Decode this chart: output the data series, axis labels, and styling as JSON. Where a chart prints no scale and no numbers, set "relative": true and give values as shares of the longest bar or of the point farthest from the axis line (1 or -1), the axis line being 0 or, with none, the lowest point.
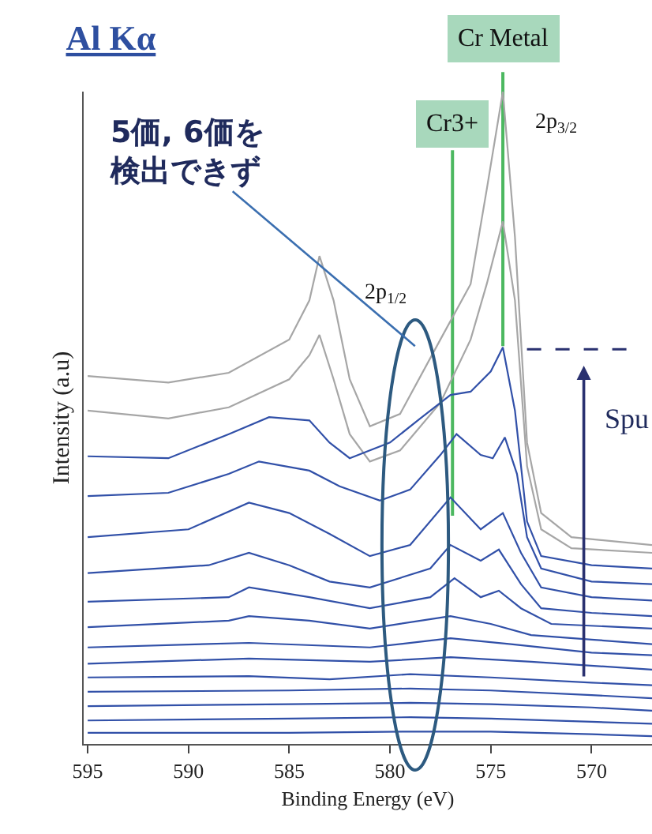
{
  "chart_data": {
    "type": "line",
    "title": "Al Kα",
    "xlabel": "Binding Energy (eV)",
    "ylabel": "Intensity (a.u)",
    "relative": true,
    "xlim": [
      595.2,
      567
    ],
    "xticks": [
      595,
      590,
      585,
      580,
      575,
      570
    ],
    "legend": false,
    "marker": "none",
    "line_style": "solid",
    "series": [
      {
        "color": "#a6a6a6",
        "x": [
          595,
          591,
          588,
          585,
          584,
          583.5,
          582.8,
          582,
          581,
          579.5,
          577.5,
          576,
          575.2,
          574.4,
          573.8,
          573.2,
          572.5,
          571,
          567
        ],
        "values": [
          0.564,
          0.554,
          0.569,
          0.62,
          0.68,
          0.748,
          0.68,
          0.559,
          0.487,
          0.506,
          0.62,
          0.705,
          0.85,
          1.0,
          0.777,
          0.462,
          0.354,
          0.317,
          0.305
        ]
      },
      {
        "color": "#a6a6a6",
        "x": [
          595,
          591,
          588,
          585,
          584,
          583.5,
          582.8,
          582,
          581,
          579.5,
          577.5,
          576,
          575.2,
          574.4,
          573.8,
          573.2,
          572.5,
          571,
          567
        ],
        "values": [
          0.511,
          0.499,
          0.516,
          0.559,
          0.596,
          0.627,
          0.559,
          0.475,
          0.433,
          0.45,
          0.523,
          0.62,
          0.705,
          0.801,
          0.68,
          0.426,
          0.329,
          0.3,
          0.293
        ]
      },
      {
        "color": "#3150a8",
        "x": [
          595,
          591,
          588,
          586,
          584,
          583,
          582,
          581,
          580,
          578.5,
          577,
          576,
          575,
          574.4,
          573.8,
          573.2,
          572.5,
          570,
          567
        ],
        "values": [
          0.441,
          0.438,
          0.475,
          0.501,
          0.496,
          0.462,
          0.438,
          0.45,
          0.462,
          0.499,
          0.535,
          0.54,
          0.571,
          0.608,
          0.511,
          0.341,
          0.288,
          0.274,
          0.269
        ]
      },
      {
        "color": "#3150a8",
        "x": [
          595,
          591,
          588,
          586.5,
          584,
          582.5,
          580.5,
          579,
          577.5,
          576.7,
          575.5,
          574.9,
          574.3,
          573.7,
          573.2,
          572.5,
          570,
          567
        ],
        "values": [
          0.38,
          0.385,
          0.414,
          0.433,
          0.419,
          0.395,
          0.373,
          0.39,
          0.443,
          0.475,
          0.443,
          0.438,
          0.47,
          0.414,
          0.317,
          0.269,
          0.249,
          0.245
        ]
      },
      {
        "color": "#3150a8",
        "x": [
          595,
          590,
          587,
          585,
          583,
          581,
          579,
          577,
          575.5,
          574.4,
          573.5,
          572.5,
          570,
          567
        ],
        "values": [
          0.317,
          0.329,
          0.37,
          0.354,
          0.322,
          0.288,
          0.305,
          0.378,
          0.329,
          0.354,
          0.293,
          0.24,
          0.225,
          0.22
        ]
      },
      {
        "color": "#3150a8",
        "x": [
          595,
          589,
          587,
          585,
          583,
          581,
          578,
          577,
          575.5,
          574.6,
          573.5,
          572.5,
          570,
          567
        ],
        "values": [
          0.262,
          0.274,
          0.293,
          0.274,
          0.249,
          0.24,
          0.269,
          0.305,
          0.281,
          0.298,
          0.245,
          0.208,
          0.201,
          0.196
        ]
      },
      {
        "color": "#3150a8",
        "x": [
          595,
          588,
          587,
          584,
          581,
          578,
          576.8,
          575.5,
          574.6,
          573.5,
          572,
          567
        ],
        "values": [
          0.218,
          0.225,
          0.24,
          0.225,
          0.208,
          0.225,
          0.254,
          0.225,
          0.235,
          0.208,
          0.184,
          0.177
        ]
      },
      {
        "color": "#3150a8",
        "x": [
          595,
          588,
          587,
          584,
          581,
          577,
          575,
          573,
          570,
          567
        ],
        "values": [
          0.179,
          0.189,
          0.196,
          0.189,
          0.177,
          0.196,
          0.184,
          0.167,
          0.16,
          0.153
        ]
      },
      {
        "color": "#3150a8",
        "x": [
          595,
          587,
          581,
          577,
          574,
          570,
          567
        ],
        "values": [
          0.148,
          0.155,
          0.148,
          0.162,
          0.153,
          0.14,
          0.136
        ]
      },
      {
        "color": "#3150a8",
        "x": [
          595,
          587,
          581,
          577,
          573,
          567
        ],
        "values": [
          0.123,
          0.131,
          0.126,
          0.133,
          0.126,
          0.114
        ]
      },
      {
        "color": "#3150a8",
        "x": [
          595,
          587,
          583,
          579,
          575,
          570,
          567
        ],
        "values": [
          0.102,
          0.104,
          0.099,
          0.107,
          0.102,
          0.094,
          0.09
        ]
      },
      {
        "color": "#3150a8",
        "x": [
          595,
          585,
          579,
          575,
          570,
          567
        ],
        "values": [
          0.08,
          0.082,
          0.085,
          0.082,
          0.075,
          0.07
        ]
      },
      {
        "color": "#3150a8",
        "x": [
          595,
          585,
          579,
          575,
          570,
          567
        ],
        "values": [
          0.058,
          0.061,
          0.063,
          0.061,
          0.056,
          0.051
        ]
      },
      {
        "color": "#3150a8",
        "x": [
          595,
          585,
          579,
          575,
          570,
          567
        ],
        "values": [
          0.036,
          0.039,
          0.041,
          0.039,
          0.034,
          0.031
        ]
      },
      {
        "color": "#3150a8",
        "x": [
          595,
          585,
          579,
          575,
          570,
          567
        ],
        "values": [
          0.017,
          0.017,
          0.019,
          0.019,
          0.015,
          0.012
        ]
      }
    ],
    "ref_lines": [
      {
        "axis": "x",
        "value": 576.9,
        "label": "Cr3+",
        "color": "#4cb860"
      },
      {
        "axis": "x",
        "value": 574.4,
        "label": "Cr Metal",
        "color": "#4cb860"
      },
      {
        "axis": "y",
        "value": 0.605,
        "color": "#2a3170",
        "line_style": "dashed"
      }
    ],
    "annotations": [
      "5価, 6価を検出できず",
      "2p$_{3/2}$",
      "2p$_{1/2}$",
      "Spu"
    ]
  }
}
